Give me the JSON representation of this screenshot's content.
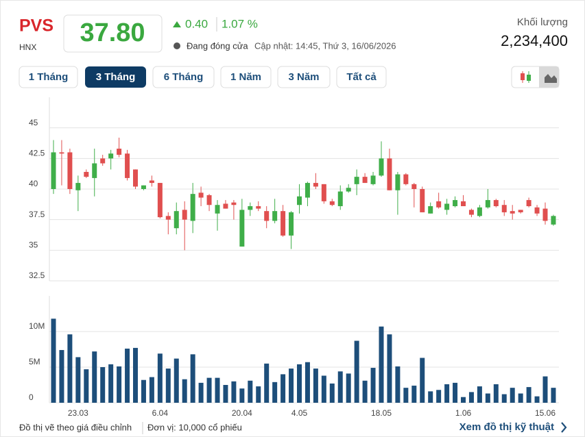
{
  "header": {
    "symbol": "PVS",
    "exchange": "HNX",
    "price": "37.80",
    "change": "0.40",
    "change_pct": "1.07 %",
    "status": "Đang đóng cửa",
    "updated": "Cập nhật: 14:45, Thứ 3, 16/06/2026",
    "volume_label": "Khối lượng",
    "volume": "2,234,400"
  },
  "tabs": [
    "1 Tháng",
    "3 Tháng",
    "6 Tháng",
    "1 Năm",
    "3 Năm",
    "Tất cả"
  ],
  "footer": {
    "note": "Đồ thị vẽ theo giá điều chỉnh",
    "unit": "Đơn vị: 10,000 cổ phiếu",
    "link": "Xem đồ thị kỹ thuật"
  },
  "chart_data": [
    {
      "type": "candlestick",
      "up_color": "#3fae49",
      "down_color": "#e04f4f",
      "ylim": [
        32.5,
        47.5
      ],
      "yticks": [
        32.5,
        35,
        37.5,
        40,
        42.5,
        45
      ],
      "grid": true,
      "open": [
        40.0,
        43.0,
        43.0,
        39.9,
        41.4,
        40.9,
        42.5,
        42.5,
        43.3,
        42.9,
        41.6,
        40.0,
        40.7,
        40.5,
        37.8,
        36.8,
        38.3,
        37.4,
        39.7,
        39.5,
        38.0,
        38.8,
        38.9,
        35.3,
        38.3,
        38.6,
        38.2,
        37.4,
        38.2,
        36.2,
        38.7,
        39.3,
        40.5,
        40.4,
        39.0,
        38.6,
        39.8,
        40.4,
        41.0,
        40.4,
        41.1,
        42.5,
        39.9,
        41.2,
        40.4,
        40.0,
        38.0,
        39.0,
        38.3,
        38.6,
        39.0,
        38.3,
        37.8,
        38.5,
        39.1,
        38.7,
        38.2,
        38.3,
        39.1,
        38.5,
        38.4,
        37.1
      ],
      "high": [
        44.0,
        44.0,
        43.3,
        41.1,
        41.6,
        43.3,
        42.8,
        43.2,
        44.2,
        43.2,
        41.6,
        40.3,
        41.1,
        40.5,
        38.1,
        38.9,
        39.0,
        40.5,
        40.2,
        39.6,
        39.1,
        39.1,
        39.1,
        39.2,
        38.9,
        39.0,
        38.6,
        39.2,
        38.7,
        38.2,
        40.4,
        40.6,
        41.3,
        40.4,
        39.2,
        40.3,
        40.4,
        41.6,
        41.3,
        41.4,
        43.9,
        43.3,
        41.4,
        41.3,
        40.5,
        40.2,
        38.9,
        39.7,
        39.2,
        39.4,
        39.5,
        38.4,
        38.7,
        40.0,
        39.2,
        39.1,
        38.7,
        38.3,
        39.3,
        38.7,
        38.9,
        37.9
      ],
      "low": [
        39.6,
        40.3,
        39.6,
        38.2,
        40.9,
        39.4,
        41.9,
        41.6,
        42.6,
        40.7,
        40.0,
        39.9,
        40.2,
        37.6,
        36.3,
        36.3,
        35.0,
        36.4,
        38.6,
        38.2,
        36.6,
        38.4,
        37.5,
        35.3,
        37.8,
        38.2,
        36.8,
        37.2,
        36.1,
        35.1,
        38.0,
        38.6,
        40.0,
        38.8,
        38.6,
        38.3,
        39.7,
        39.5,
        40.5,
        40.3,
        41.0,
        39.9,
        37.9,
        40.3,
        38.5,
        38.1,
        38.0,
        38.4,
        37.9,
        38.5,
        38.6,
        37.7,
        37.7,
        38.4,
        38.5,
        37.8,
        37.5,
        38.0,
        38.5,
        37.8,
        37.1,
        37.0
      ],
      "close": [
        43.0,
        42.9,
        40.0,
        40.5,
        41.0,
        42.1,
        42.1,
        42.9,
        42.8,
        40.9,
        40.2,
        40.3,
        40.5,
        37.7,
        37.5,
        38.2,
        37.5,
        39.6,
        39.3,
        38.7,
        38.7,
        38.4,
        38.7,
        38.3,
        38.6,
        38.4,
        37.4,
        38.2,
        36.2,
        38.1,
        39.4,
        40.5,
        40.2,
        39.0,
        38.7,
        39.8,
        40.1,
        41.0,
        40.5,
        41.1,
        42.5,
        39.9,
        41.2,
        40.4,
        40.0,
        38.1,
        38.6,
        38.5,
        38.8,
        39.1,
        38.6,
        37.9,
        38.5,
        39.1,
        38.6,
        38.1,
        38.0,
        38.1,
        38.6,
        38.0,
        37.4,
        37.8
      ]
    },
    {
      "type": "bar",
      "color": "#1d4e7a",
      "ylim": [
        0,
        15000000
      ],
      "yticks": [
        0,
        {
          "value": 5000000,
          "label": "5M"
        },
        {
          "value": 10000000,
          "label": "10M"
        }
      ],
      "grid": true,
      "categories": [
        null,
        null,
        null,
        "23.03",
        null,
        null,
        null,
        null,
        null,
        null,
        null,
        null,
        null,
        "6.04",
        null,
        null,
        null,
        null,
        null,
        null,
        null,
        null,
        null,
        "20.04",
        null,
        null,
        null,
        null,
        null,
        null,
        "4.05",
        null,
        null,
        null,
        null,
        null,
        null,
        null,
        null,
        null,
        "18.05",
        null,
        null,
        null,
        null,
        null,
        null,
        null,
        null,
        null,
        "1.06",
        null,
        null,
        null,
        null,
        null,
        null,
        null,
        null,
        null,
        "15.06",
        null
      ],
      "values": [
        11800000,
        7400000,
        9600000,
        6400000,
        4700000,
        7200000,
        5000000,
        5400000,
        5100000,
        7600000,
        7700000,
        3200000,
        3600000,
        6900000,
        4800000,
        6200000,
        3300000,
        6800000,
        2800000,
        3500000,
        3500000,
        2500000,
        3000000,
        2000000,
        3100000,
        2300000,
        5500000,
        2900000,
        4000000,
        4800000,
        5400000,
        5700000,
        4800000,
        3800000,
        2700000,
        4400000,
        4100000,
        8700000,
        3100000,
        4900000,
        10700000,
        9600000,
        5100000,
        2100000,
        2400000,
        6300000,
        1600000,
        1800000,
        2600000,
        2800000,
        800000,
        1500000,
        2300000,
        1300000,
        2600000,
        1200000,
        2100000,
        1300000,
        2200000,
        900000,
        3700000,
        2100000
      ]
    }
  ]
}
